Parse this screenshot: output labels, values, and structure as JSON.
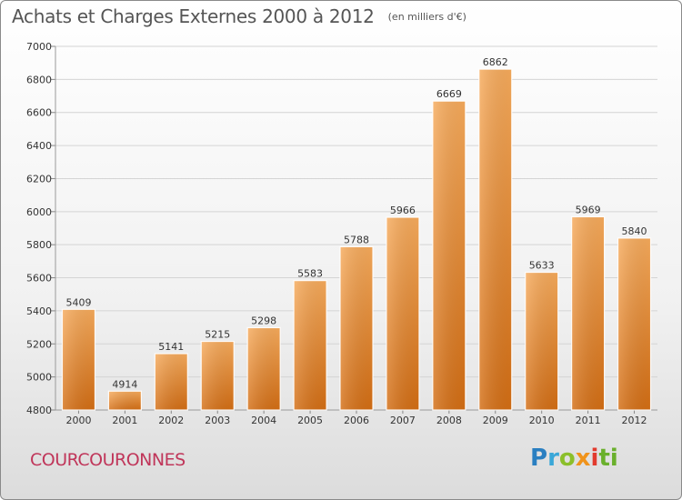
{
  "title": "Achats et Charges Externes 2000 à 2012",
  "unit": "(en milliers d'€)",
  "city": "COURCOURONNES",
  "brand": "Proxiti",
  "colors": {
    "bar_light": "#f7ab5c",
    "bar_dark": "#d46e14",
    "city": "#c0365a"
  },
  "chart_data": {
    "type": "bar",
    "title": "Achats et Charges Externes 2000 à 2012",
    "xlabel": "",
    "ylabel": "",
    "categories": [
      "2000",
      "2001",
      "2002",
      "2003",
      "2004",
      "2005",
      "2006",
      "2007",
      "2008",
      "2009",
      "2010",
      "2011",
      "2012"
    ],
    "values": [
      5409,
      4914,
      5141,
      5215,
      5298,
      5583,
      5788,
      5966,
      6669,
      6862,
      5633,
      5969,
      5840
    ],
    "ylim": [
      4800,
      7000
    ],
    "yticks": [
      4800,
      5000,
      5200,
      5400,
      5600,
      5800,
      6000,
      6200,
      6400,
      6600,
      6800,
      7000
    ],
    "grid": true,
    "data_labels": true
  }
}
